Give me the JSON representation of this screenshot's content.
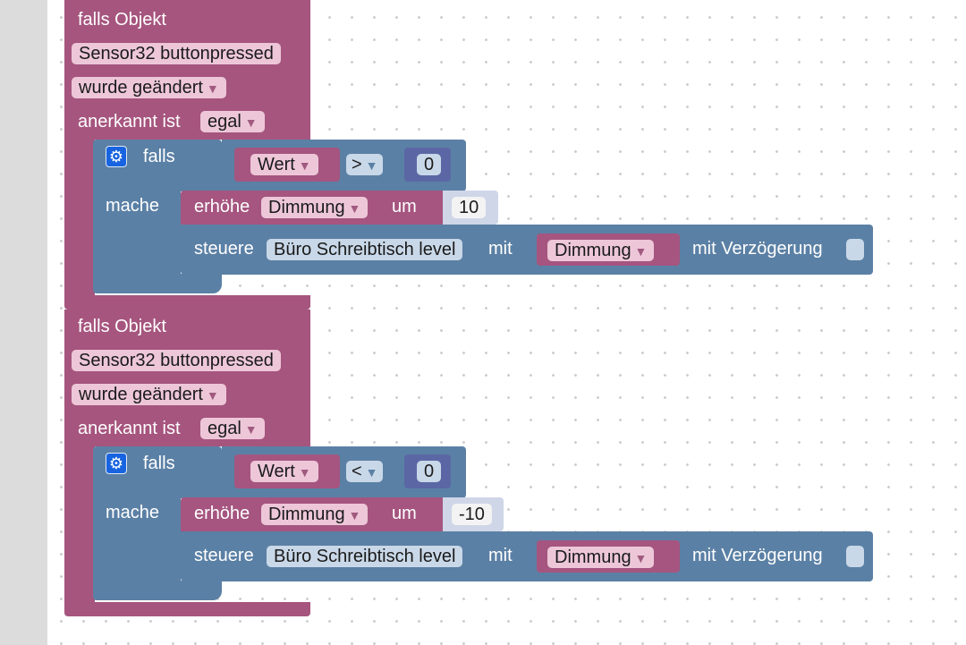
{
  "blocks": [
    {
      "header": "falls Objekt",
      "object": "Sensor32 buttonpressed",
      "trigger": "wurde geändert",
      "ack_label": "anerkannt ist",
      "ack_value": "egal",
      "if_label": "falls",
      "do_label": "mache",
      "var": "Wert",
      "operator": ">",
      "compare_value": "0",
      "increment_label": "erhöhe",
      "increment_var": "Dimmung",
      "increment_by_label": "um",
      "increment_value": "10",
      "control_label": "steuere",
      "control_target": "Büro Schreibtisch level",
      "control_with_label": "mit",
      "control_var": "Dimmung",
      "delay_label": "mit Verzögerung"
    },
    {
      "header": "falls Objekt",
      "object": "Sensor32 buttonpressed",
      "trigger": "wurde geändert",
      "ack_label": "anerkannt ist",
      "ack_value": "egal",
      "if_label": "falls",
      "do_label": "mache",
      "var": "Wert",
      "operator": "<",
      "compare_value": "0",
      "increment_label": "erhöhe",
      "increment_var": "Dimmung",
      "increment_by_label": "um",
      "increment_value": "-10",
      "control_label": "steuere",
      "control_target": "Büro Schreibtisch level",
      "control_with_label": "mit",
      "control_var": "Dimmung",
      "delay_label": "mit Verzögerung"
    }
  ],
  "icons": {
    "gear": "gear-icon",
    "dropdown": "chevron-down-icon"
  },
  "colors": {
    "event_block": "#a6557e",
    "control_block": "#5b80a5",
    "logic_block": "#5b67a5",
    "sidebar": "#dcdcdc"
  }
}
